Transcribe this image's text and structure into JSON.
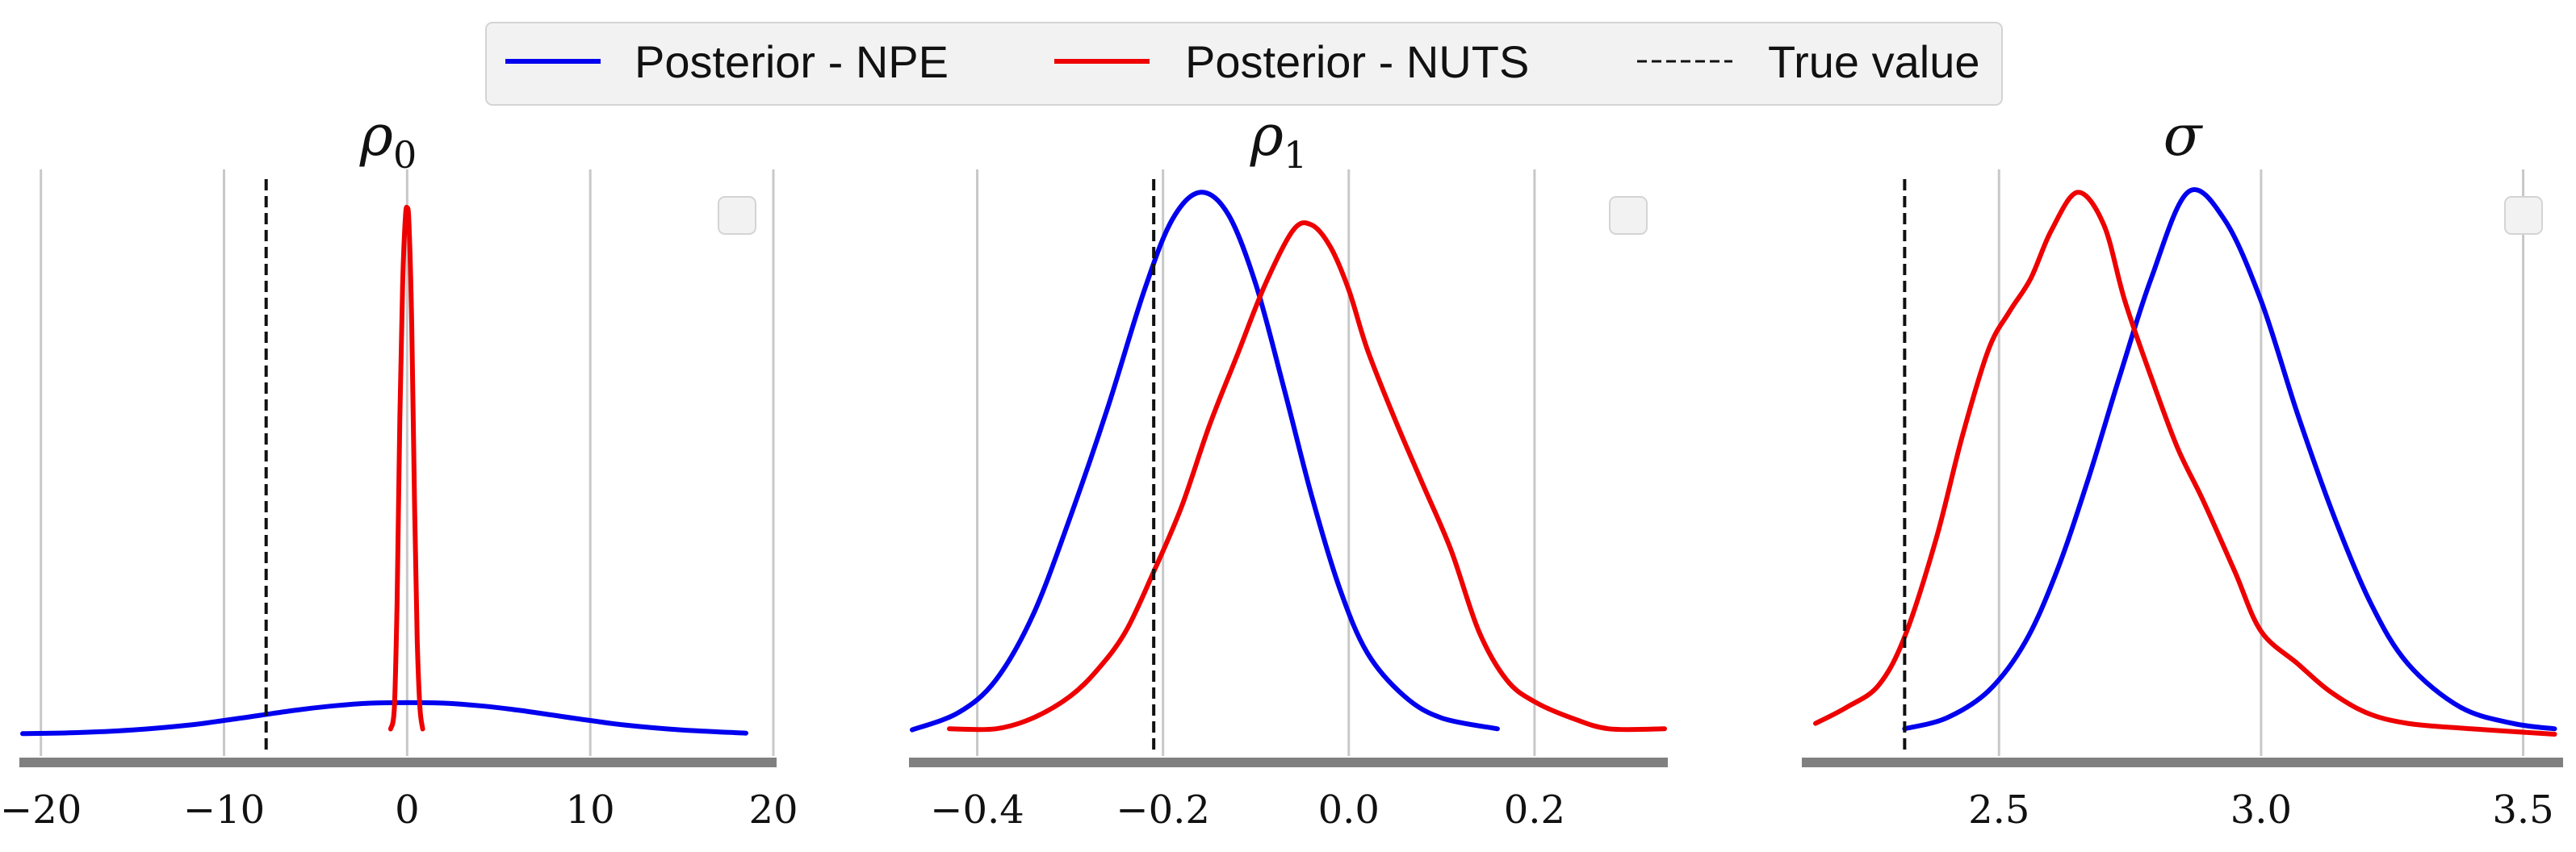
{
  "legend": {
    "entries": [
      {
        "label": "Posterior - NPE",
        "color": "#0000ee",
        "style": "solid"
      },
      {
        "label": "Posterior - NUTS",
        "color": "#ee0000",
        "style": "solid"
      },
      {
        "label": "True value",
        "color": "#111111",
        "style": "dashed"
      }
    ]
  },
  "chart_data": [
    {
      "type": "line",
      "title": "ρ",
      "title_sub": "0",
      "xlim": [
        -21,
        20
      ],
      "xticks": [
        -20,
        -10,
        0,
        10,
        20
      ],
      "xtick_labels": [
        "−20",
        "−10",
        "0",
        "10",
        "20"
      ],
      "true_value": -7.7,
      "grid": "vertical",
      "series": [
        {
          "name": "Posterior - NPE",
          "color": "#0000ee",
          "x": [
            -21,
            -18,
            -15,
            -12,
            -10,
            -8,
            -6,
            -4,
            -2,
            0,
            2,
            4,
            6,
            8,
            10,
            12,
            15,
            18.5
          ],
          "y": [
            0.001,
            0.003,
            0.008,
            0.017,
            0.026,
            0.036,
            0.046,
            0.054,
            0.059,
            0.06,
            0.059,
            0.054,
            0.046,
            0.036,
            0.026,
            0.017,
            0.008,
            0.002
          ]
        },
        {
          "name": "Posterior - NUTS",
          "color": "#ee0000",
          "x": [
            -0.9,
            -0.7,
            -0.55,
            -0.4,
            -0.25,
            -0.1,
            0.0,
            0.1,
            0.25,
            0.4,
            0.55,
            0.7,
            0.85
          ],
          "y": [
            0.01,
            0.05,
            0.25,
            0.6,
            0.85,
            0.98,
            1.0,
            0.97,
            0.78,
            0.45,
            0.18,
            0.05,
            0.01
          ]
        }
      ]
    },
    {
      "type": "line",
      "title": "ρ",
      "title_sub": "1",
      "xlim": [
        -0.47,
        0.34
      ],
      "xticks": [
        -0.4,
        -0.2,
        0.0,
        0.2
      ],
      "xtick_labels": [
        "−0.4",
        "−0.2",
        "0.0",
        "0.2"
      ],
      "true_value": -0.21,
      "grid": "vertical",
      "series": [
        {
          "name": "Posterior - NPE",
          "color": "#0000ee",
          "x": [
            -0.47,
            -0.42,
            -0.38,
            -0.34,
            -0.3,
            -0.26,
            -0.22,
            -0.19,
            -0.16,
            -0.13,
            -0.1,
            -0.07,
            -0.04,
            -0.01,
            0.02,
            0.06,
            0.1,
            0.16
          ],
          "y": [
            0.008,
            0.04,
            0.1,
            0.22,
            0.4,
            0.6,
            0.82,
            0.95,
            1.0,
            0.96,
            0.83,
            0.64,
            0.44,
            0.27,
            0.15,
            0.07,
            0.03,
            0.01
          ]
        },
        {
          "name": "Posterior - NUTS",
          "color": "#ee0000",
          "x": [
            -0.43,
            -0.38,
            -0.34,
            -0.3,
            -0.27,
            -0.24,
            -0.21,
            -0.18,
            -0.15,
            -0.12,
            -0.09,
            -0.06,
            -0.04,
            -0.02,
            0.0,
            0.02,
            0.05,
            0.08,
            0.11,
            0.14,
            0.17,
            0.2,
            0.24,
            0.28,
            0.34
          ],
          "y": [
            0.01,
            0.01,
            0.03,
            0.07,
            0.12,
            0.19,
            0.3,
            0.42,
            0.57,
            0.7,
            0.83,
            0.93,
            0.94,
            0.9,
            0.82,
            0.71,
            0.58,
            0.46,
            0.34,
            0.19,
            0.1,
            0.06,
            0.03,
            0.01,
            0.01
          ]
        }
      ]
    },
    {
      "type": "line",
      "title": "σ",
      "title_sub": "",
      "xlim": [
        2.13,
        3.57
      ],
      "xticks": [
        2.5,
        3.0,
        3.5
      ],
      "xtick_labels": [
        "2.5",
        "3.0",
        "3.5"
      ],
      "true_value": 2.32,
      "grid": "vertical",
      "series": [
        {
          "name": "Posterior - NPE",
          "color": "#0000ee",
          "x": [
            2.32,
            2.4,
            2.48,
            2.55,
            2.61,
            2.67,
            2.73,
            2.79,
            2.86,
            2.93,
            3.0,
            3.07,
            3.14,
            3.21,
            3.28,
            3.38,
            3.48,
            3.56
          ],
          "y": [
            0.01,
            0.03,
            0.08,
            0.17,
            0.3,
            0.47,
            0.66,
            0.84,
            1.0,
            0.95,
            0.8,
            0.59,
            0.4,
            0.24,
            0.13,
            0.05,
            0.02,
            0.01
          ]
        },
        {
          "name": "Posterior - NUTS",
          "color": "#ee0000",
          "x": [
            2.15,
            2.21,
            2.27,
            2.32,
            2.38,
            2.43,
            2.48,
            2.52,
            2.56,
            2.6,
            2.65,
            2.7,
            2.74,
            2.79,
            2.84,
            2.89,
            2.95,
            3.0,
            3.07,
            3.13,
            3.2,
            3.28,
            3.4,
            3.56
          ],
          "y": [
            0.02,
            0.05,
            0.09,
            0.18,
            0.36,
            0.55,
            0.71,
            0.78,
            0.84,
            0.93,
            1.0,
            0.94,
            0.8,
            0.66,
            0.53,
            0.43,
            0.3,
            0.19,
            0.13,
            0.08,
            0.04,
            0.02,
            0.01,
            0.0
          ]
        }
      ]
    }
  ]
}
